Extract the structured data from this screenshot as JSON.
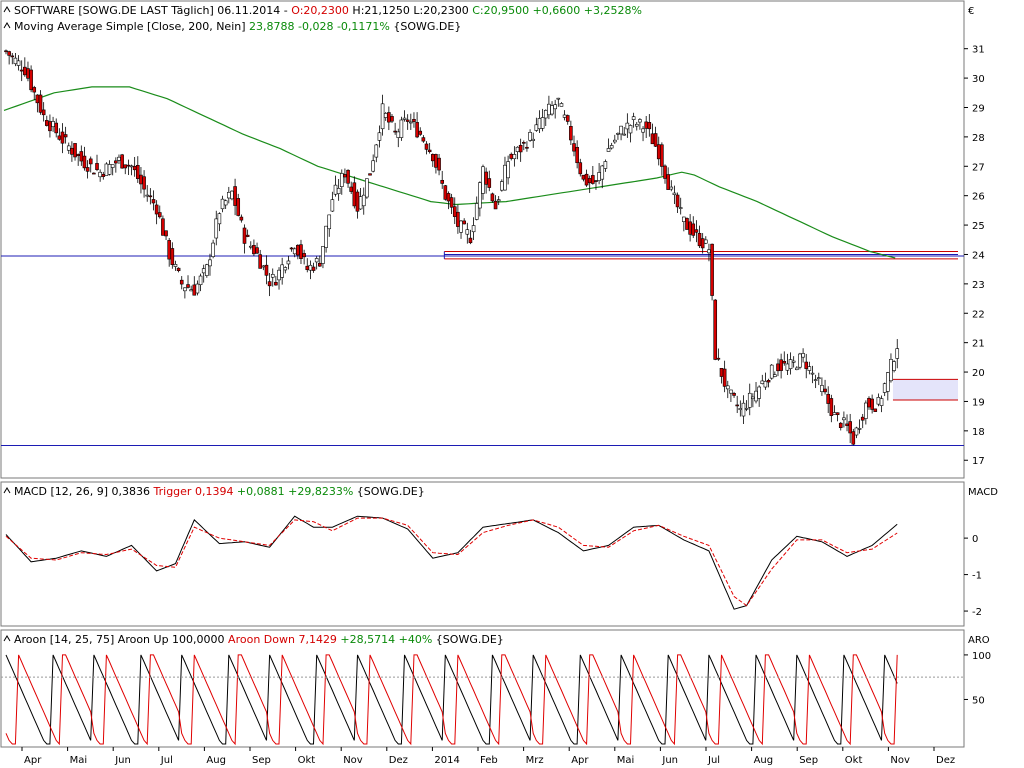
{
  "colors": {
    "background": "#ffffff",
    "frame": "#7a7a7a",
    "up_candle": "#ffffff",
    "down_candle": "#d40000",
    "ma_line": "#1a8c1a",
    "support_line": "#1c1cb4",
    "resistance_red": "#cc0000",
    "zone_fill": "#e4e4fa",
    "macd_line": "#000000",
    "trigger_line": "#e00000",
    "aroon_up": "#000000",
    "aroon_down": "#e00000",
    "header_red": "#d40000",
    "header_green": "#0a8a0a"
  },
  "header": {
    "line1": [
      {
        "text": "SOFTWARE [SOWG.DE LAST Täglich] 06.11.2014 - ",
        "color": "black"
      },
      {
        "text": "O:20,2300",
        "color": "red"
      },
      {
        "text": " H:21,1250 L:20,2300 ",
        "color": "black"
      },
      {
        "text": "C:20,9500 +0,6600 +3,2528%",
        "color": "green"
      }
    ],
    "line2": [
      {
        "text": "Moving Average Simple [Close, 200, Nein] ",
        "color": "black"
      },
      {
        "text": "23,8788 -0,028 -0,1171%",
        "color": "green"
      },
      {
        "text": " {SOWG.DE}",
        "color": "black"
      }
    ],
    "currency": "€"
  },
  "macd_header": [
    {
      "text": "MACD [12, 26, 9] 0,3836 ",
      "color": "black"
    },
    {
      "text": "Trigger 0,1394",
      "color": "red"
    },
    {
      "text": " +0,0881 +29,8233%",
      "color": "green"
    },
    {
      "text": " {SOWG.DE}",
      "color": "black"
    }
  ],
  "aroon_header": [
    {
      "text": "Aroon [14, 25, 75] Aroon Up 100,0000 ",
      "color": "black"
    },
    {
      "text": "Aroon Down 7,1429",
      "color": "red"
    },
    {
      "text": " +28,5714 +40%",
      "color": "green"
    },
    {
      "text": " {SOWG.DE}",
      "color": "black"
    }
  ],
  "chart_data": [
    {
      "type": "candlestick",
      "panel": "price",
      "title": "SOFTWARE [SOWG.DE LAST Täglich] 06.11.2014",
      "ylabel": "€",
      "yticks": [
        "31",
        "30",
        "29",
        "28",
        "27",
        "26",
        "25",
        "24",
        "23",
        "22",
        "21",
        "20",
        "19",
        "18",
        "17"
      ],
      "ylim": [
        16.6,
        31.5
      ],
      "xlabels": [
        "Apr",
        "Mai",
        "Jun",
        "Jul",
        "Aug",
        "Sep",
        "Okt",
        "Nov",
        "Dez",
        "2014",
        "Feb",
        "Mrz",
        "Apr",
        "Mai",
        "Jun",
        "Jul",
        "Aug",
        "Sep",
        "Okt",
        "Nov",
        "Dez"
      ],
      "price_path": [
        [
          0,
          30.9
        ],
        [
          3,
          30.3
        ],
        [
          6,
          28.7
        ],
        [
          9,
          27.9
        ],
        [
          12,
          27.2
        ],
        [
          15,
          26.8
        ],
        [
          18,
          27.2
        ],
        [
          20,
          27.0
        ],
        [
          22,
          26.2
        ],
        [
          24,
          25.6
        ],
        [
          26,
          24.0
        ],
        [
          28,
          23.0
        ],
        [
          30,
          22.8
        ],
        [
          32,
          23.5
        ],
        [
          34,
          25.5
        ],
        [
          36,
          26.1
        ],
        [
          38,
          24.6
        ],
        [
          40,
          24.0
        ],
        [
          42,
          23.1
        ],
        [
          43,
          23.2
        ],
        [
          46,
          24.4
        ],
        [
          48,
          23.5
        ],
        [
          50,
          23.8
        ],
        [
          52,
          25.9
        ],
        [
          54,
          26.8
        ],
        [
          56,
          25.6
        ],
        [
          58,
          26.8
        ],
        [
          60,
          28.9
        ],
        [
          62,
          28.1
        ],
        [
          64,
          28.6
        ],
        [
          66,
          28.1
        ],
        [
          68,
          27.4
        ],
        [
          70,
          26.0
        ],
        [
          72,
          25.0
        ],
        [
          74,
          24.6
        ],
        [
          76,
          26.9
        ],
        [
          78,
          25.6
        ],
        [
          80,
          27.2
        ],
        [
          82,
          27.6
        ],
        [
          84,
          28.1
        ],
        [
          86,
          28.8
        ],
        [
          88,
          29.2
        ],
        [
          90,
          28.0
        ],
        [
          92,
          26.5
        ],
        [
          94,
          26.4
        ],
        [
          96,
          27.6
        ],
        [
          98,
          28.2
        ],
        [
          100,
          28.5
        ],
        [
          102,
          28.3
        ],
        [
          104,
          27.5
        ],
        [
          106,
          26.1
        ],
        [
          108,
          25.1
        ],
        [
          110,
          24.6
        ],
        [
          112,
          24.2
        ],
        [
          113,
          20.6
        ],
        [
          115,
          19.3
        ],
        [
          117,
          18.7
        ],
        [
          119,
          19.2
        ],
        [
          121,
          19.8
        ],
        [
          123,
          20.2
        ],
        [
          125,
          20.2
        ],
        [
          127,
          20.5
        ],
        [
          128,
          20.1
        ],
        [
          130,
          19.4
        ],
        [
          132,
          18.5
        ],
        [
          134,
          18.1
        ],
        [
          135,
          17.7
        ],
        [
          137,
          18.9
        ],
        [
          139,
          18.9
        ],
        [
          141,
          20.2
        ],
        [
          142,
          20.95
        ]
      ],
      "moving_average": {
        "name": "Moving Average Simple [Close, 200, Nein]",
        "path": [
          [
            0,
            28.9
          ],
          [
            8,
            29.5
          ],
          [
            14,
            29.7
          ],
          [
            20,
            29.7
          ],
          [
            26,
            29.3
          ],
          [
            32,
            28.7
          ],
          [
            38,
            28.1
          ],
          [
            44,
            27.6
          ],
          [
            50,
            27.0
          ],
          [
            56,
            26.6
          ],
          [
            62,
            26.2
          ],
          [
            68,
            25.8
          ],
          [
            72,
            25.7
          ],
          [
            80,
            25.8
          ],
          [
            86,
            26.0
          ],
          [
            92,
            26.2
          ],
          [
            98,
            26.4
          ],
          [
            104,
            26.6
          ],
          [
            108,
            26.8
          ],
          [
            110,
            26.7
          ],
          [
            114,
            26.3
          ],
          [
            120,
            25.8
          ],
          [
            126,
            25.2
          ],
          [
            132,
            24.6
          ],
          [
            138,
            24.1
          ],
          [
            142,
            23.88
          ]
        ]
      },
      "support_lines": [
        23.95,
        17.5
      ],
      "resistance_band": {
        "from_index": 70,
        "to_index": 152,
        "values": [
          24.1,
          23.85,
          24.0
        ]
      },
      "zone": {
        "from_index": 141,
        "to_index": 152,
        "low": 19.05,
        "high": 19.75
      }
    },
    {
      "type": "line",
      "panel": "macd",
      "title": "MACD [12, 26, 9]",
      "ylabel": "MACD",
      "yticks": [
        "0",
        "-1",
        "-2"
      ],
      "ylim": [
        -2.3,
        1.1
      ],
      "series": [
        {
          "name": "MACD",
          "points": [
            [
              0,
              0.1
            ],
            [
              4,
              -0.65
            ],
            [
              8,
              -0.55
            ],
            [
              12,
              -0.35
            ],
            [
              16,
              -0.5
            ],
            [
              20,
              -0.2
            ],
            [
              24,
              -0.9
            ],
            [
              27,
              -0.7
            ],
            [
              30,
              0.5
            ],
            [
              34,
              -0.15
            ],
            [
              38,
              -0.1
            ],
            [
              42,
              -0.25
            ],
            [
              46,
              0.6
            ],
            [
              49,
              0.3
            ],
            [
              52,
              0.3
            ],
            [
              56,
              0.6
            ],
            [
              60,
              0.55
            ],
            [
              64,
              0.25
            ],
            [
              68,
              -0.55
            ],
            [
              72,
              -0.4
            ],
            [
              76,
              0.3
            ],
            [
              80,
              0.4
            ],
            [
              84,
              0.5
            ],
            [
              88,
              0.15
            ],
            [
              92,
              -0.35
            ],
            [
              96,
              -0.2
            ],
            [
              100,
              0.3
            ],
            [
              104,
              0.35
            ],
            [
              108,
              -0.05
            ],
            [
              112,
              -0.35
            ],
            [
              116,
              -1.95
            ],
            [
              118,
              -1.85
            ],
            [
              122,
              -0.6
            ],
            [
              126,
              0.05
            ],
            [
              130,
              -0.1
            ],
            [
              134,
              -0.5
            ],
            [
              138,
              -0.2
            ],
            [
              142,
              0.38
            ]
          ]
        },
        {
          "name": "Trigger",
          "points": [
            [
              0,
              0.05
            ],
            [
              4,
              -0.55
            ],
            [
              8,
              -0.6
            ],
            [
              12,
              -0.4
            ],
            [
              16,
              -0.45
            ],
            [
              20,
              -0.3
            ],
            [
              24,
              -0.75
            ],
            [
              27,
              -0.8
            ],
            [
              30,
              0.3
            ],
            [
              34,
              0.0
            ],
            [
              38,
              -0.1
            ],
            [
              42,
              -0.2
            ],
            [
              46,
              0.5
            ],
            [
              49,
              0.45
            ],
            [
              52,
              0.2
            ],
            [
              56,
              0.55
            ],
            [
              60,
              0.55
            ],
            [
              64,
              0.35
            ],
            [
              68,
              -0.4
            ],
            [
              72,
              -0.45
            ],
            [
              76,
              0.15
            ],
            [
              80,
              0.35
            ],
            [
              84,
              0.5
            ],
            [
              88,
              0.3
            ],
            [
              92,
              -0.2
            ],
            [
              96,
              -0.25
            ],
            [
              100,
              0.2
            ],
            [
              104,
              0.35
            ],
            [
              108,
              0.05
            ],
            [
              112,
              -0.2
            ],
            [
              116,
              -1.6
            ],
            [
              118,
              -1.85
            ],
            [
              122,
              -0.85
            ],
            [
              126,
              -0.05
            ],
            [
              130,
              -0.05
            ],
            [
              134,
              -0.4
            ],
            [
              138,
              -0.3
            ],
            [
              142,
              0.14
            ]
          ]
        }
      ]
    },
    {
      "type": "line",
      "panel": "aroon",
      "title": "Aroon [14, 25, 75]",
      "ylabel": "ARO",
      "yticks": [
        "100",
        "50"
      ],
      "ylim": [
        0,
        110
      ],
      "series": [
        {
          "name": "Aroon Up",
          "pattern": [
            100,
            92,
            84,
            76,
            68,
            60,
            52,
            44,
            36,
            28,
            20,
            12,
            4,
            0,
            0,
            100,
            92,
            84,
            76,
            68,
            60,
            52,
            44,
            36,
            28,
            20,
            12,
            4
          ]
        },
        {
          "name": "Aroon Down",
          "pattern": [
            12,
            4,
            0,
            0,
            100,
            92,
            84,
            76,
            68,
            60,
            52,
            44,
            36,
            28,
            20,
            12,
            4,
            0,
            100,
            100,
            92,
            84,
            76,
            68,
            60,
            52,
            44,
            36
          ]
        }
      ],
      "last": {
        "aroon_up": 100,
        "aroon_down": 7.1429
      }
    }
  ]
}
